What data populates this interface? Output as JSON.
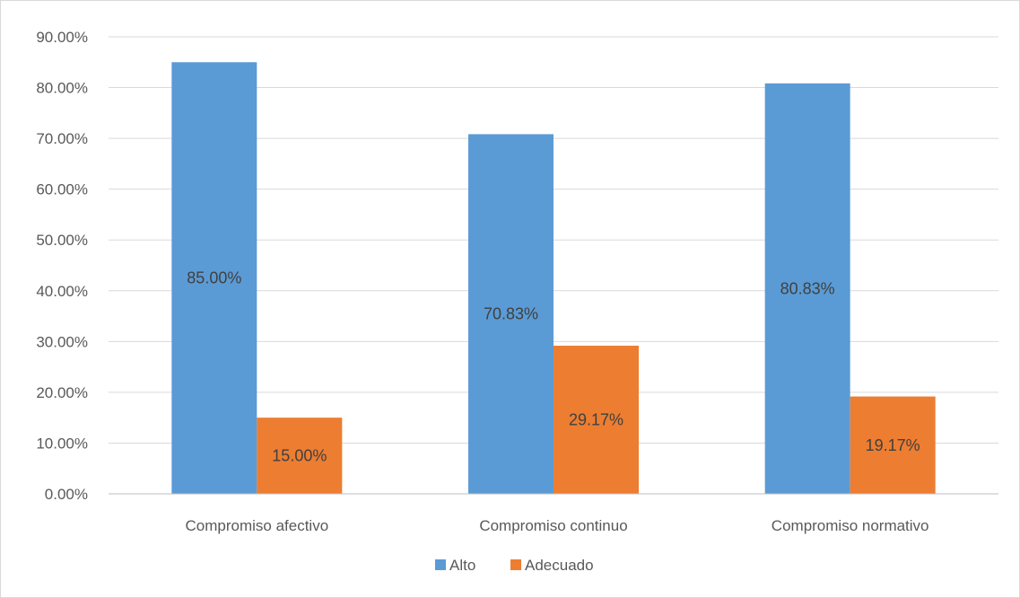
{
  "chart_data": {
    "type": "bar",
    "categories": [
      "Compromiso afectivo",
      "Compromiso continuo",
      "Compromiso normativo"
    ],
    "series": [
      {
        "name": "Alto",
        "values": [
          85.0,
          70.83,
          80.83
        ],
        "labels": [
          "85.00%",
          "70.83%",
          "80.83%"
        ],
        "color": "#5b9bd5"
      },
      {
        "name": "Adecuado",
        "values": [
          15.0,
          29.17,
          19.17
        ],
        "labels": [
          "15.00%",
          "29.17%",
          "19.17%"
        ],
        "color": "#ed7d31"
      }
    ],
    "y_ticks": [
      "0.00%",
      "10.00%",
      "20.00%",
      "30.00%",
      "40.00%",
      "50.00%",
      "60.00%",
      "70.00%",
      "80.00%",
      "90.00%"
    ],
    "ylim": [
      0,
      90
    ],
    "grid": true,
    "legend": "bottom",
    "colors": {
      "gridline": "#d9d9d9",
      "axis": "#bfbfbf",
      "text": "#595959"
    }
  }
}
